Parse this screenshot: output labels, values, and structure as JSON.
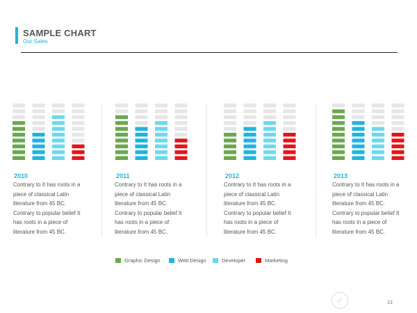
{
  "header": {
    "title": "SAMPLE CHART",
    "subtitle": "Our Sales"
  },
  "colors": {
    "graphic_design": "#6aa84f",
    "web_design": "#1eb4e1",
    "developer": "#6dd8f0",
    "marketing": "#e3151a",
    "empty": "#e6e6e6",
    "accent": "#1eb4e1"
  },
  "chart_data": {
    "type": "bar",
    "max_level": 10,
    "panels": [
      {
        "year": "2010",
        "text": [
          "Contrary to It has roots in a piece of classical Latin literature from 45 BC.",
          "Contrary to popular belief It has roots in a piece of literature from 45 BC."
        ],
        "values": [
          7,
          5,
          8,
          3
        ]
      },
      {
        "year": "2011",
        "text": [
          "Contrary to It has roots in a piece of classical Latin literature from 45 BC.",
          "Contrary to popular belief It has roots in a piece of literature from 45 BC."
        ],
        "values": [
          8,
          6,
          7,
          4
        ]
      },
      {
        "year": "2012",
        "text": [
          "Contrary to It has roots in a piece of classical Latin literature from 45 BC.",
          "Contrary to popular belief It has roots in a piece of literature from 45 BC."
        ],
        "values": [
          5,
          6,
          7,
          5
        ]
      },
      {
        "year": "2013",
        "text": [
          "Contrary to It has roots in a piece of classical Latin literature from 45 BC.",
          "Contrary to popular belief It has roots in a piece of literature from 45 BC."
        ],
        "values": [
          9,
          7,
          6,
          5
        ]
      }
    ],
    "series": [
      {
        "name": "Graphic Design",
        "color": "#6aa84f"
      },
      {
        "name": "Web Design",
        "color": "#1eb4e1"
      },
      {
        "name": "Developer",
        "color": "#6dd8f0"
      },
      {
        "name": "Marketing",
        "color": "#e3151a"
      }
    ]
  },
  "legend": {
    "items": [
      "Graphic Design",
      "Web Design",
      "Developer",
      "Marketing"
    ]
  },
  "footer": {
    "page_number": "13",
    "watermark_text": "悟空问答"
  }
}
